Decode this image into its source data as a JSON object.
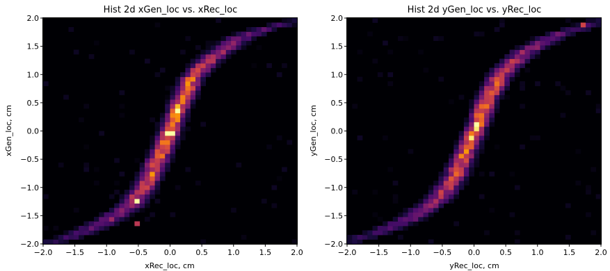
{
  "colormap": [
    "#000004",
    "#1b0c41",
    "#4a0c6b",
    "#781c6d",
    "#a52c60",
    "#cf4446",
    "#ed6925",
    "#fb9b06",
    "#f7d13d",
    "#fcffa4"
  ],
  "chart_data": [
    {
      "type": "heatmap",
      "title": "Hist 2d xGen_loc vs. xRec_loc",
      "xlabel": "xRec_loc, cm",
      "ylabel": "xGen_loc, cm",
      "xlim": [
        -2.0,
        2.0
      ],
      "ylim": [
        -2.0,
        2.0
      ],
      "xticks": [
        "−2.0",
        "−1.5",
        "−1.0",
        "−0.5",
        "0.0",
        "0.5",
        "1.0",
        "1.5",
        "2.0"
      ],
      "yticks": [
        "−2.0",
        "−1.5",
        "−1.0",
        "−0.5",
        "0.0",
        "0.5",
        "1.0",
        "1.5",
        "2.0"
      ],
      "bins": 50,
      "ridge": [
        {
          "x": -1.95,
          "y": -2.0,
          "intensity": 0.15
        },
        {
          "x": -1.5,
          "y": -1.85,
          "intensity": 0.25
        },
        {
          "x": -1.0,
          "y": -1.6,
          "intensity": 0.4
        },
        {
          "x": -0.6,
          "y": -1.3,
          "intensity": 0.6
        },
        {
          "x": -0.35,
          "y": -0.9,
          "intensity": 0.75
        },
        {
          "x": -0.15,
          "y": -0.4,
          "intensity": 0.85
        },
        {
          "x": 0.0,
          "y": 0.0,
          "intensity": 1.0
        },
        {
          "x": 0.15,
          "y": 0.45,
          "intensity": 0.9
        },
        {
          "x": 0.35,
          "y": 0.95,
          "intensity": 0.8
        },
        {
          "x": 0.65,
          "y": 1.3,
          "intensity": 0.6
        },
        {
          "x": 1.1,
          "y": 1.65,
          "intensity": 0.4
        },
        {
          "x": 1.6,
          "y": 1.85,
          "intensity": 0.25
        },
        {
          "x": 2.0,
          "y": 1.95,
          "intensity": 0.15
        }
      ],
      "hotspots": [
        {
          "x": -0.5,
          "y": -1.25,
          "intensity": 1.0
        },
        {
          "x": 0.0,
          "y": -0.05,
          "intensity": 1.0
        },
        {
          "x": 0.1,
          "y": 0.35,
          "intensity": 1.0
        },
        {
          "x": -0.55,
          "y": -1.65,
          "intensity": 0.5
        }
      ]
    },
    {
      "type": "heatmap",
      "title": "Hist 2d yGen_loc vs. yRec_loc",
      "xlabel": "yRec_loc, cm",
      "ylabel": "yGen_loc, cm",
      "xlim": [
        -2.0,
        2.0
      ],
      "ylim": [
        -2.0,
        2.0
      ],
      "xticks": [
        "−2.0",
        "−1.5",
        "−1.0",
        "−0.5",
        "0.0",
        "0.5",
        "1.0",
        "1.5",
        "2.0"
      ],
      "yticks": [
        "−2.0",
        "−1.5",
        "−1.0",
        "−0.5",
        "0.0",
        "0.5",
        "1.0",
        "1.5",
        "2.0"
      ],
      "bins": 50,
      "ridge": [
        {
          "x": -1.95,
          "y": -1.95,
          "intensity": 0.15
        },
        {
          "x": -1.5,
          "y": -1.8,
          "intensity": 0.25
        },
        {
          "x": -1.0,
          "y": -1.55,
          "intensity": 0.4
        },
        {
          "x": -0.55,
          "y": -1.2,
          "intensity": 0.55
        },
        {
          "x": -0.3,
          "y": -0.8,
          "intensity": 0.7
        },
        {
          "x": -0.1,
          "y": -0.3,
          "intensity": 0.85
        },
        {
          "x": 0.05,
          "y": 0.1,
          "intensity": 1.0
        },
        {
          "x": 0.2,
          "y": 0.55,
          "intensity": 0.85
        },
        {
          "x": 0.45,
          "y": 1.05,
          "intensity": 0.65
        },
        {
          "x": 0.8,
          "y": 1.4,
          "intensity": 0.5
        },
        {
          "x": 1.3,
          "y": 1.7,
          "intensity": 0.35
        },
        {
          "x": 1.75,
          "y": 1.85,
          "intensity": 0.25
        },
        {
          "x": 2.0,
          "y": 1.95,
          "intensity": 0.15
        }
      ],
      "hotspots": [
        {
          "x": 0.05,
          "y": 0.1,
          "intensity": 1.0
        },
        {
          "x": -0.05,
          "y": -0.1,
          "intensity": 0.95
        },
        {
          "x": 1.75,
          "y": 1.85,
          "intensity": 0.55
        }
      ]
    }
  ]
}
